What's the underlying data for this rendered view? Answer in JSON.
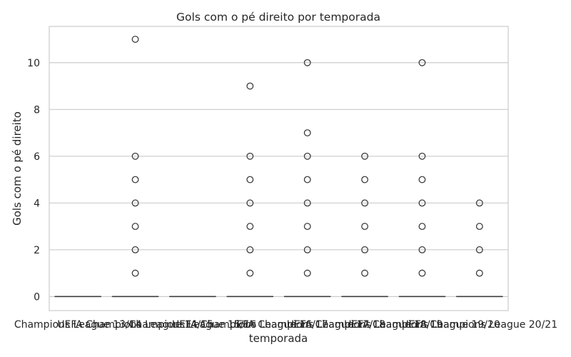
{
  "chart_data": {
    "type": "box",
    "title": "Gols com o pé direito por temporada",
    "xlabel": "temporada",
    "ylabel": "Gols com o pé direito",
    "ylim": [
      -0.6,
      11.55
    ],
    "yticks": [
      0,
      2,
      4,
      6,
      8,
      10
    ],
    "grid": "horizontal",
    "colors": {
      "grid": "#cccccc",
      "frame": "#cccccc",
      "box_line": "#3d3d3d",
      "text": "#262626"
    },
    "categories": [
      "Champions League 13/14",
      "UEFA Champions League 14/15",
      "Champions League 15/16",
      "UEFA Champions League 16/17",
      "UEFA Champions League 17/18",
      "UEFA Champions League 18/19",
      "UEFA Champions League 19/20",
      "UEFA Champions League 20/21"
    ],
    "series": [
      {
        "category": "Champions League 13/14",
        "median": 0,
        "q1": 0,
        "q3": 0,
        "whisker_low": 0,
        "whisker_high": 0,
        "outliers": []
      },
      {
        "category": "UEFA Champions League 14/15",
        "median": 0,
        "q1": 0,
        "q3": 0,
        "whisker_low": 0,
        "whisker_high": 0,
        "outliers": [
          1,
          2,
          3,
          4,
          5,
          6,
          11
        ]
      },
      {
        "category": "Champions League 15/16",
        "median": 0,
        "q1": 0,
        "q3": 0,
        "whisker_low": 0,
        "whisker_high": 0,
        "outliers": []
      },
      {
        "category": "UEFA Champions League 16/17",
        "median": 0,
        "q1": 0,
        "q3": 0,
        "whisker_low": 0,
        "whisker_high": 0,
        "outliers": [
          1,
          2,
          3,
          4,
          5,
          6,
          9
        ]
      },
      {
        "category": "UEFA Champions League 17/18",
        "median": 0,
        "q1": 0,
        "q3": 0,
        "whisker_low": 0,
        "whisker_high": 0,
        "outliers": [
          1,
          2,
          3,
          4,
          5,
          6,
          7,
          10
        ]
      },
      {
        "category": "UEFA Champions League 18/19",
        "median": 0,
        "q1": 0,
        "q3": 0,
        "whisker_low": 0,
        "whisker_high": 0,
        "outliers": [
          1,
          2,
          3,
          4,
          5,
          6
        ]
      },
      {
        "category": "UEFA Champions League 19/20",
        "median": 0,
        "q1": 0,
        "q3": 0,
        "whisker_low": 0,
        "whisker_high": 0,
        "outliers": [
          1,
          2,
          3,
          4,
          5,
          6,
          10
        ]
      },
      {
        "category": "UEFA Champions League 20/21",
        "median": 0,
        "q1": 0,
        "q3": 0,
        "whisker_low": 0,
        "whisker_high": 0,
        "outliers": [
          1,
          2,
          3,
          4
        ]
      }
    ]
  }
}
